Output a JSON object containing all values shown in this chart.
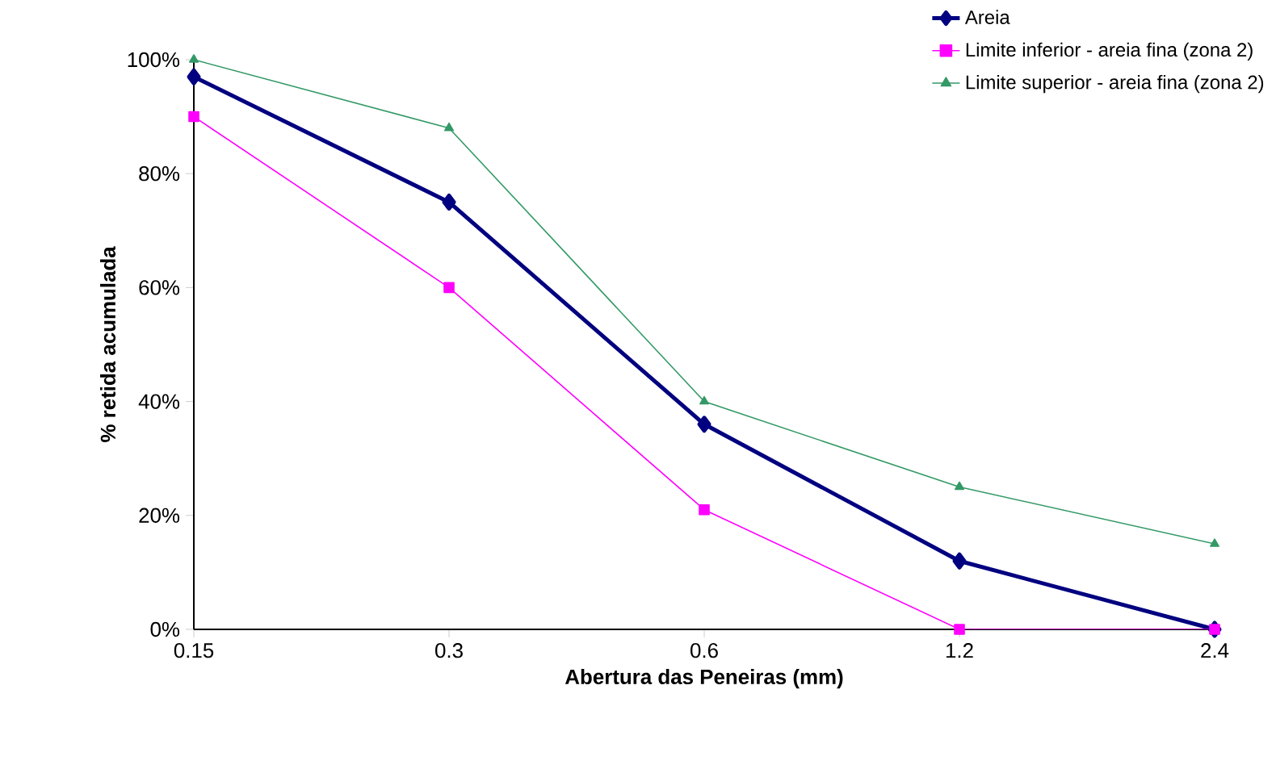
{
  "chart_data": {
    "type": "line",
    "xlabel": "Abertura das Peneiras (mm)",
    "ylabel": "% retida acumulada",
    "categories": [
      "0.15",
      "0.3",
      "0.6",
      "1.2",
      "2.4"
    ],
    "series": [
      {
        "name": "Areia",
        "color": "#000080",
        "marker": "diamond",
        "values": [
          97,
          75,
          36,
          12,
          0
        ]
      },
      {
        "name": "Limite inferior - areia fina (zona 2)",
        "color": "#ff00ff",
        "marker": "square",
        "values": [
          90,
          60,
          21,
          0,
          0
        ]
      },
      {
        "name": "Limite superior - areia fina (zona 2)",
        "color": "#339966",
        "marker": "triangle",
        "values": [
          100,
          88,
          40,
          25,
          15
        ]
      }
    ],
    "ylim": [
      0,
      100
    ],
    "yticks": [
      {
        "value": 0,
        "label": "0%"
      },
      {
        "value": 20,
        "label": "20%"
      },
      {
        "value": 40,
        "label": "40%"
      },
      {
        "value": 60,
        "label": "60%"
      },
      {
        "value": 80,
        "label": "80%"
      },
      {
        "value": 100,
        "label": "100%"
      }
    ],
    "grid": false,
    "legend": "top right",
    "line_style": "solid"
  }
}
